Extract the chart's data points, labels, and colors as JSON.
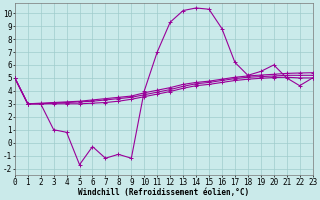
{
  "background_color": "#caeaea",
  "grid_color": "#a0cccc",
  "line_color": "#990099",
  "marker": "+",
  "marker_size": 3,
  "linewidth": 0.8,
  "xlim": [
    0,
    23
  ],
  "ylim": [
    -2.5,
    10.8
  ],
  "xticks": [
    0,
    1,
    2,
    3,
    4,
    5,
    6,
    7,
    8,
    9,
    10,
    11,
    12,
    13,
    14,
    15,
    16,
    17,
    18,
    19,
    20,
    21,
    22,
    23
  ],
  "yticks": [
    -2,
    -1,
    0,
    1,
    2,
    3,
    4,
    5,
    6,
    7,
    8,
    9,
    10
  ],
  "xlabel": "Windchill (Refroidissement éolien,°C)",
  "xlabel_fontsize": 5.5,
  "tick_fontsize": 5.5,
  "series1": [
    5.0,
    3.0,
    3.0,
    1.0,
    0.8,
    -1.7,
    -0.3,
    -1.2,
    -0.9,
    -1.2,
    4.0,
    7.0,
    9.3,
    10.2,
    10.4,
    10.3,
    8.8,
    6.2,
    5.2,
    5.5,
    6.0,
    5.0,
    4.4,
    5.0
  ],
  "series2": [
    5.0,
    3.0,
    3.0,
    3.05,
    3.1,
    3.15,
    3.2,
    3.3,
    3.4,
    3.5,
    3.7,
    3.9,
    4.1,
    4.35,
    4.55,
    4.65,
    4.8,
    4.95,
    5.05,
    5.1,
    5.15,
    5.2,
    5.2,
    5.2
  ],
  "series3": [
    5.0,
    3.0,
    3.05,
    3.1,
    3.15,
    3.2,
    3.3,
    3.4,
    3.5,
    3.6,
    3.85,
    4.05,
    4.25,
    4.5,
    4.65,
    4.75,
    4.9,
    5.05,
    5.15,
    5.22,
    5.28,
    5.35,
    5.38,
    5.4
  ],
  "series4": [
    5.0,
    3.0,
    3.0,
    3.0,
    3.0,
    3.0,
    3.05,
    3.1,
    3.2,
    3.35,
    3.55,
    3.75,
    3.95,
    4.2,
    4.4,
    4.5,
    4.65,
    4.8,
    4.9,
    4.97,
    5.03,
    5.05,
    5.0,
    5.0
  ]
}
